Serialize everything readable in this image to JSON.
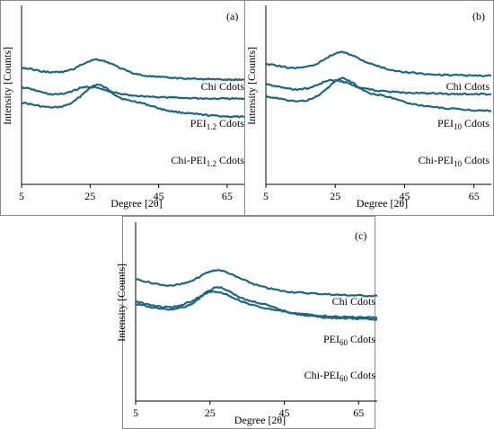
{
  "chart_data": [
    {
      "panel_label": "(a)",
      "type": "line",
      "xlabel": "Degree [2θ]",
      "ylabel": "Intensity [Counts]",
      "xticks": [
        "5",
        "25",
        "45",
        "65"
      ],
      "xlim": [
        5,
        70
      ],
      "yticks": "none",
      "series": [
        {
          "name": "Chi Cdots",
          "name_main": "Chi Cdots",
          "name_sub": "",
          "name_tail": "",
          "x": [
            5,
            8,
            11,
            14,
            17,
            20,
            22,
            24,
            26,
            27,
            28,
            30,
            32,
            34,
            36,
            38,
            40,
            42,
            44,
            46,
            48,
            50,
            55,
            60,
            65,
            70
          ],
          "y": [
            0.74,
            0.7,
            0.66,
            0.64,
            0.66,
            0.74,
            0.85,
            0.97,
            1.06,
            1.08,
            1.07,
            1.0,
            0.9,
            0.82,
            0.78,
            0.76,
            0.73,
            0.69,
            0.65,
            0.61,
            0.58,
            0.56,
            0.52,
            0.49,
            0.47,
            0.46
          ]
        },
        {
          "name": "PEI1.2 Cdots",
          "name_main": "PEI",
          "name_sub": "1.2",
          "name_tail": " Cdots",
          "x": [
            5,
            8,
            11,
            14,
            17,
            20,
            22,
            24,
            26,
            28,
            30,
            32,
            34,
            36,
            38,
            40,
            45,
            50,
            55,
            60,
            65,
            70
          ],
          "y": [
            0.48,
            0.44,
            0.38,
            0.34,
            0.35,
            0.41,
            0.46,
            0.49,
            0.48,
            0.45,
            0.41,
            0.38,
            0.35,
            0.33,
            0.32,
            0.31,
            0.29,
            0.28,
            0.27,
            0.26,
            0.26,
            0.26
          ]
        },
        {
          "name": "Chi-PEI1.2 Cdots",
          "name_main": "Chi-PEI",
          "name_sub": "1.2",
          "name_tail": " Cdots",
          "x": [
            5,
            8,
            11,
            14,
            17,
            20,
            22,
            24,
            26,
            27,
            28,
            30,
            32,
            34,
            36,
            38,
            40,
            42,
            45,
            50,
            55,
            60,
            65,
            70
          ],
          "y": [
            0.25,
            0.22,
            0.18,
            0.16,
            0.17,
            0.22,
            0.29,
            0.36,
            0.4,
            0.41,
            0.4,
            0.36,
            0.3,
            0.24,
            0.18,
            0.14,
            0.11,
            0.09,
            0.07,
            0.05,
            0.04,
            0.03,
            0.02,
            0.02
          ]
        }
      ]
    },
    {
      "panel_label": "(b)",
      "type": "line",
      "xlabel": "Degree [2θ]",
      "ylabel": "Intensity [Counts]",
      "xticks": [
        "5",
        "25",
        "45",
        "65"
      ],
      "xlim": [
        5,
        70
      ],
      "yticks": "none",
      "series": [
        {
          "name": "Chi Cdots",
          "name_main": "Chi Cdots",
          "name_sub": "",
          "name_tail": "",
          "x": [
            5,
            8,
            11,
            14,
            17,
            20,
            22,
            24,
            26,
            27,
            28,
            30,
            32,
            34,
            36,
            38,
            40,
            42,
            44,
            46,
            48,
            50,
            55,
            60,
            65,
            70
          ],
          "y": [
            0.74,
            0.7,
            0.66,
            0.64,
            0.66,
            0.74,
            0.85,
            0.97,
            1.06,
            1.08,
            1.07,
            1.0,
            0.9,
            0.82,
            0.78,
            0.76,
            0.73,
            0.69,
            0.65,
            0.61,
            0.58,
            0.56,
            0.52,
            0.49,
            0.47,
            0.46
          ]
        },
        {
          "name": "PEI10 Cdots",
          "name_main": "PEI",
          "name_sub": "10",
          "name_tail": " Cdots",
          "x": [
            5,
            8,
            11,
            14,
            17,
            20,
            22,
            24,
            26,
            28,
            30,
            32,
            34,
            36,
            38,
            40,
            45,
            50,
            55,
            60,
            65,
            70
          ],
          "y": [
            0.46,
            0.41,
            0.37,
            0.35,
            0.37,
            0.44,
            0.5,
            0.53,
            0.52,
            0.48,
            0.43,
            0.39,
            0.36,
            0.34,
            0.32,
            0.31,
            0.29,
            0.28,
            0.27,
            0.26,
            0.26,
            0.26
          ]
        },
        {
          "name": "Chi-PEI10 Cdots",
          "name_main": "Chi-PEI",
          "name_sub": "10",
          "name_tail": " Cdots",
          "x": [
            5,
            8,
            11,
            14,
            17,
            20,
            22,
            24,
            26,
            27,
            28,
            30,
            32,
            34,
            36,
            38,
            40,
            42,
            45,
            50,
            55,
            60,
            65,
            70
          ],
          "y": [
            0.24,
            0.21,
            0.17,
            0.16,
            0.18,
            0.25,
            0.33,
            0.41,
            0.45,
            0.46,
            0.45,
            0.4,
            0.33,
            0.27,
            0.22,
            0.18,
            0.14,
            0.11,
            0.08,
            0.05,
            0.03,
            0.02,
            0.01,
            0.01
          ]
        }
      ]
    },
    {
      "panel_label": "(c)",
      "type": "line",
      "xlabel": "Degree [2θ]",
      "ylabel": "Intensity [Counts]",
      "xticks": [
        "5",
        "25",
        "45",
        "65"
      ],
      "xlim": [
        5,
        70
      ],
      "yticks": "none",
      "series": [
        {
          "name": "Chi Cdots",
          "name_main": "Chi Cdots",
          "name_sub": "",
          "name_tail": "",
          "x": [
            5,
            8,
            11,
            14,
            17,
            20,
            22,
            24,
            26,
            27,
            28,
            30,
            32,
            34,
            36,
            38,
            40,
            42,
            44,
            46,
            48,
            50,
            55,
            60,
            65,
            70
          ],
          "y": [
            0.82,
            0.78,
            0.74,
            0.72,
            0.74,
            0.82,
            0.93,
            1.05,
            1.13,
            1.15,
            1.14,
            1.08,
            0.99,
            0.92,
            0.88,
            0.85,
            0.81,
            0.76,
            0.71,
            0.67,
            0.64,
            0.61,
            0.57,
            0.55,
            0.54,
            0.53
          ]
        },
        {
          "name": "PEI60 Cdots",
          "name_main": "PEI",
          "name_sub": "60",
          "name_tail": " Cdots",
          "x": [
            5,
            8,
            11,
            14,
            17,
            20,
            22,
            24,
            26,
            28,
            30,
            32,
            34,
            36,
            38,
            40,
            45,
            50,
            55,
            60,
            65,
            70
          ],
          "y": [
            0.62,
            0.56,
            0.52,
            0.5,
            0.53,
            0.62,
            0.7,
            0.77,
            0.8,
            0.79,
            0.73,
            0.66,
            0.6,
            0.55,
            0.51,
            0.48,
            0.42,
            0.37,
            0.34,
            0.32,
            0.31,
            0.3
          ]
        },
        {
          "name": "Chi-PEI60 Cdots",
          "name_main": "Chi-PEI",
          "name_sub": "60",
          "name_tail": " Cdots",
          "x": [
            5,
            8,
            11,
            14,
            17,
            20,
            22,
            24,
            26,
            27,
            28,
            30,
            32,
            34,
            36,
            38,
            40,
            42,
            45,
            50,
            55,
            60,
            65,
            70
          ],
          "y": [
            0.36,
            0.3,
            0.25,
            0.23,
            0.25,
            0.31,
            0.39,
            0.47,
            0.52,
            0.53,
            0.52,
            0.47,
            0.4,
            0.34,
            0.28,
            0.23,
            0.19,
            0.16,
            0.12,
            0.09,
            0.07,
            0.05,
            0.04,
            0.03
          ]
        }
      ]
    }
  ]
}
